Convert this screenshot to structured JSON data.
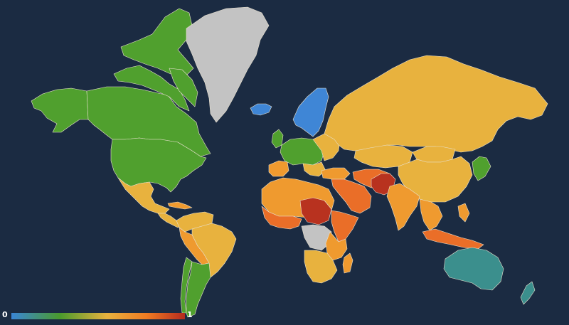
{
  "legend": {
    "min_label": "0",
    "max_label": "1",
    "gradient_colors": [
      "#3a86d6",
      "#4a9a2c",
      "#e8b23e",
      "#f07b22",
      "#b42a1e"
    ]
  },
  "colors": {
    "ocean": "#1b2b42",
    "no_data": "#c3c3c3",
    "border": "#e9e1cf",
    "blue": "#3f86d6",
    "green": "#50a02e",
    "teal": "#3b8f8d",
    "yellow": "#e8b23e",
    "orange": "#ef9a2f",
    "orange_dark": "#ea6e28",
    "red": "#b8321f"
  }
}
